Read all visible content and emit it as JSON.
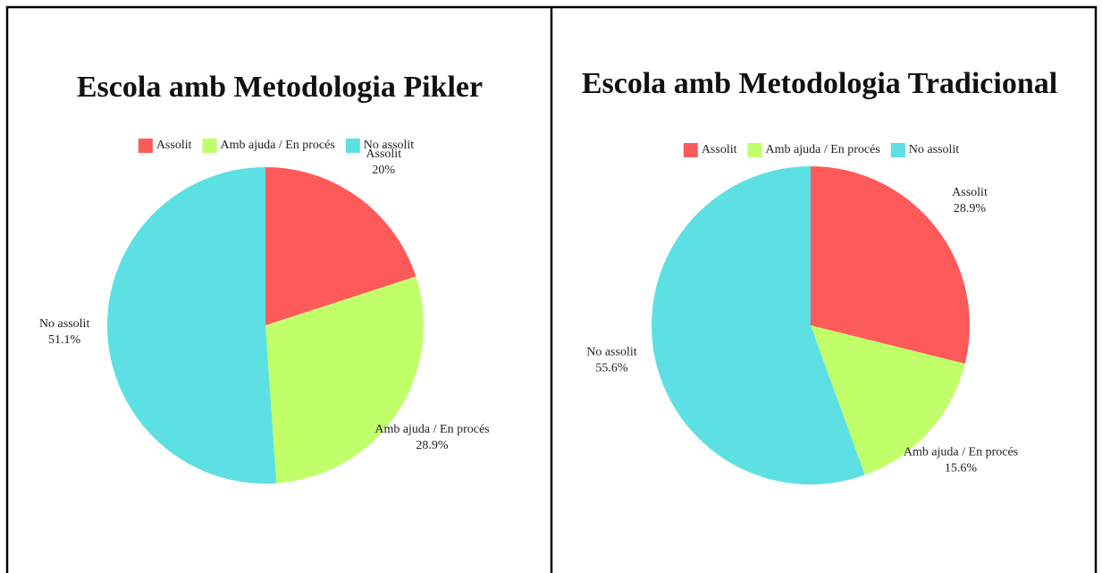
{
  "chart_data": [
    {
      "type": "pie",
      "title": "Escola amb Metodologia Pikler",
      "categories": [
        "Assolit",
        "Amb ajuda / En procés",
        "No assolit"
      ],
      "values": [
        20,
        28.9,
        51.1
      ],
      "value_labels": [
        "20%",
        "28.9%",
        "51.1%"
      ],
      "colors": [
        "#ff5a5a",
        "#c0ff6a",
        "#5ce0e4"
      ],
      "legend": "top"
    },
    {
      "type": "pie",
      "title": "Escola amb Metodologia Tradicional",
      "categories": [
        "Assolit",
        "Amb ajuda / En procés",
        "No assolit"
      ],
      "values": [
        28.9,
        15.6,
        55.6
      ],
      "value_labels": [
        "28.9%",
        "15.6%",
        "55.6%"
      ],
      "colors": [
        "#ff5a5a",
        "#c0ff6a",
        "#5ce0e4"
      ],
      "legend": "top"
    }
  ]
}
